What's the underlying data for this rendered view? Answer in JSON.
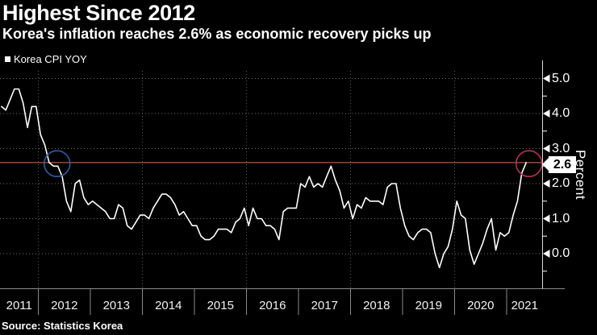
{
  "header": {
    "title": "Highest Since 2012",
    "subtitle": "Korea's inflation reaches 2.6% as economic recovery picks up"
  },
  "legend": {
    "label": "Korea CPI YOY"
  },
  "source": {
    "text": "Source: Statistics Korea"
  },
  "colors": {
    "background": "#000000",
    "line": "#ffffff",
    "grid_h": "#6f6f6f",
    "grid_v": "#5a5a5a",
    "reference_line": "#ad5c3e",
    "circle_start": "#2d5da6",
    "circle_end": "#bb2d5e",
    "x_axis_line": "#8c8c8c",
    "y_axis_line": "#d9d9d9",
    "tick": "#ffffff",
    "separator": "#8a8a8a"
  },
  "chart_data": {
    "type": "line",
    "title": "Highest Since 2012",
    "subtitle": "Korea's inflation reaches 2.6% as economic recovery picks up",
    "ylabel": "Percent",
    "ylim": [
      -1.0,
      5.2
    ],
    "grid": "dotted",
    "legend_position": "top-left",
    "y_axis": {
      "unit_label": "Percent",
      "ticks": [
        {
          "label": "5.0",
          "value": 5.0
        },
        {
          "label": "4.0",
          "value": 4.0
        },
        {
          "label": "3.0",
          "value": 3.0
        },
        {
          "label": "2.0",
          "value": 2.0
        },
        {
          "label": "1.0",
          "value": 1.0
        },
        {
          "label": "0.0",
          "value": 0.0
        }
      ],
      "minor_tick_values": [
        4.5,
        3.5,
        2.5,
        1.5,
        0.5,
        -0.5
      ]
    },
    "x_axis": {
      "tick_labels": [
        "2011",
        "2012",
        "2013",
        "2014",
        "2015",
        "2016",
        "2017",
        "2018",
        "2019",
        "2020",
        "2021"
      ],
      "boundary_years": [
        2012,
        2013,
        2014,
        2015,
        2016,
        2017,
        2018,
        2019,
        2020,
        2021
      ],
      "gridline_years": [
        2012,
        2014,
        2016,
        2018,
        2020
      ]
    },
    "annotations": {
      "reference_line": {
        "value": 2.6
      },
      "callout": {
        "label": "2.6"
      },
      "circles": [
        {
          "name": "highlight-circle-2012",
          "year": 2012.36,
          "value": 2.57
        },
        {
          "name": "highlight-circle-2021",
          "year": 2021.43,
          "value": 2.57
        }
      ]
    },
    "series": [
      {
        "name": "Korea CPI YOY",
        "unit": "percent_yoy",
        "frequency": "monthly",
        "start": "2011-04",
        "end": "2021-05",
        "values": [
          4.2,
          4.1,
          4.4,
          4.7,
          4.7,
          4.3,
          3.6,
          4.2,
          4.2,
          3.4,
          3.1,
          2.6,
          2.5,
          2.5,
          2.2,
          1.5,
          1.2,
          2.0,
          2.1,
          1.6,
          1.4,
          1.5,
          1.4,
          1.3,
          1.2,
          1.0,
          1.0,
          1.4,
          1.3,
          0.8,
          0.7,
          0.9,
          1.1,
          1.1,
          1.0,
          1.3,
          1.5,
          1.7,
          1.7,
          1.6,
          1.4,
          1.1,
          1.2,
          1.0,
          0.8,
          0.8,
          0.5,
          0.4,
          0.4,
          0.5,
          0.7,
          0.7,
          0.7,
          0.6,
          0.9,
          1.0,
          1.3,
          0.8,
          1.3,
          1.0,
          1.0,
          0.8,
          0.8,
          0.7,
          0.4,
          1.2,
          1.3,
          1.3,
          1.3,
          2.0,
          1.9,
          2.2,
          1.9,
          2.0,
          1.9,
          2.2,
          2.5,
          2.1,
          1.8,
          1.3,
          1.5,
          1.0,
          1.4,
          1.3,
          1.6,
          1.5,
          1.5,
          1.5,
          1.4,
          1.9,
          2.0,
          2.0,
          1.3,
          0.8,
          0.5,
          0.4,
          0.6,
          0.7,
          0.7,
          0.6,
          0.0,
          -0.4,
          0.0,
          0.2,
          0.7,
          1.5,
          1.1,
          1.0,
          0.1,
          -0.3,
          0.0,
          0.3,
          0.7,
          1.0,
          0.1,
          0.6,
          0.5,
          0.6,
          1.1,
          1.5,
          2.3,
          2.6
        ]
      }
    ]
  }
}
